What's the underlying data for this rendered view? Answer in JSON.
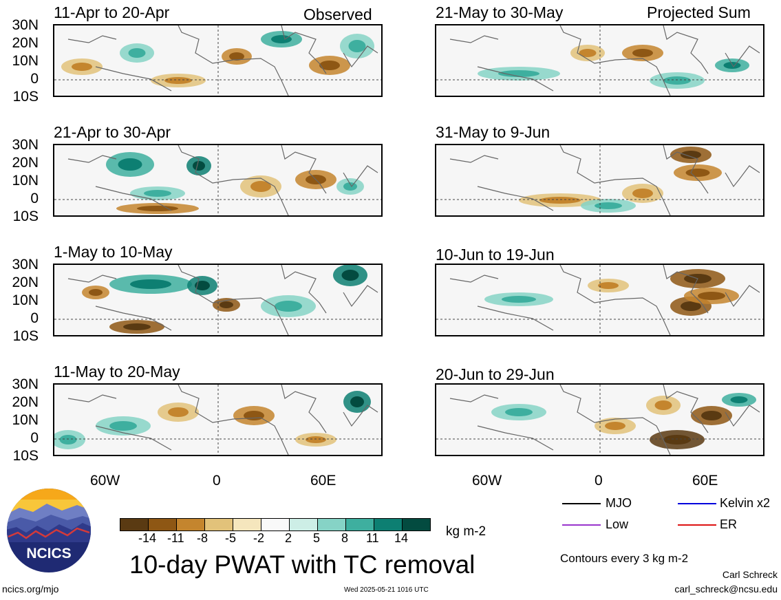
{
  "left_header": "Observed",
  "right_header": "Projected Sum",
  "panels_left": [
    {
      "period": "11-Apr to 20-Apr"
    },
    {
      "period": "21-Apr to 30-Apr"
    },
    {
      "period": "1-May to 10-May"
    },
    {
      "period": "11-May to 20-May"
    }
  ],
  "panels_right": [
    {
      "period": "21-May to 30-May"
    },
    {
      "period": "31-May to 9-Jun"
    },
    {
      "period": "10-Jun to 19-Jun"
    },
    {
      "period": "20-Jun to 29-Jun"
    }
  ],
  "lat_labels": [
    "30N",
    "20N",
    "10N",
    "0",
    "10S"
  ],
  "lon_labels": [
    "60W",
    "0",
    "60E"
  ],
  "colorbar": {
    "colors": [
      "#5a3a12",
      "#8e5714",
      "#c4852e",
      "#e2c27a",
      "#f5e6bd",
      "#f9f9f9",
      "#cdeee6",
      "#86d3c6",
      "#3eaf9f",
      "#0d7f72",
      "#034b40"
    ],
    "ticks": [
      "-14",
      "-11",
      "-8",
      "-5",
      "-2",
      "2",
      "5",
      "8",
      "11",
      "14"
    ],
    "units": "kg m-2"
  },
  "title": "10-day PWAT with TC removal",
  "logo_text": "NCICS",
  "legend": [
    {
      "label": "MJO",
      "color": "#000000"
    },
    {
      "label": "Kelvin x2",
      "color": "#0000dd"
    },
    {
      "label": "Low",
      "color": "#9933cc"
    },
    {
      "label": "ER",
      "color": "#dd1111"
    }
  ],
  "contours_note": "Contours every 3 kg m-2",
  "author": "Carl Schreck",
  "email": "carl_schreck@ncsu.edu",
  "url": "ncics.org/mjo",
  "timestamp": "Wed 2025-05-21 1016 UTC"
}
